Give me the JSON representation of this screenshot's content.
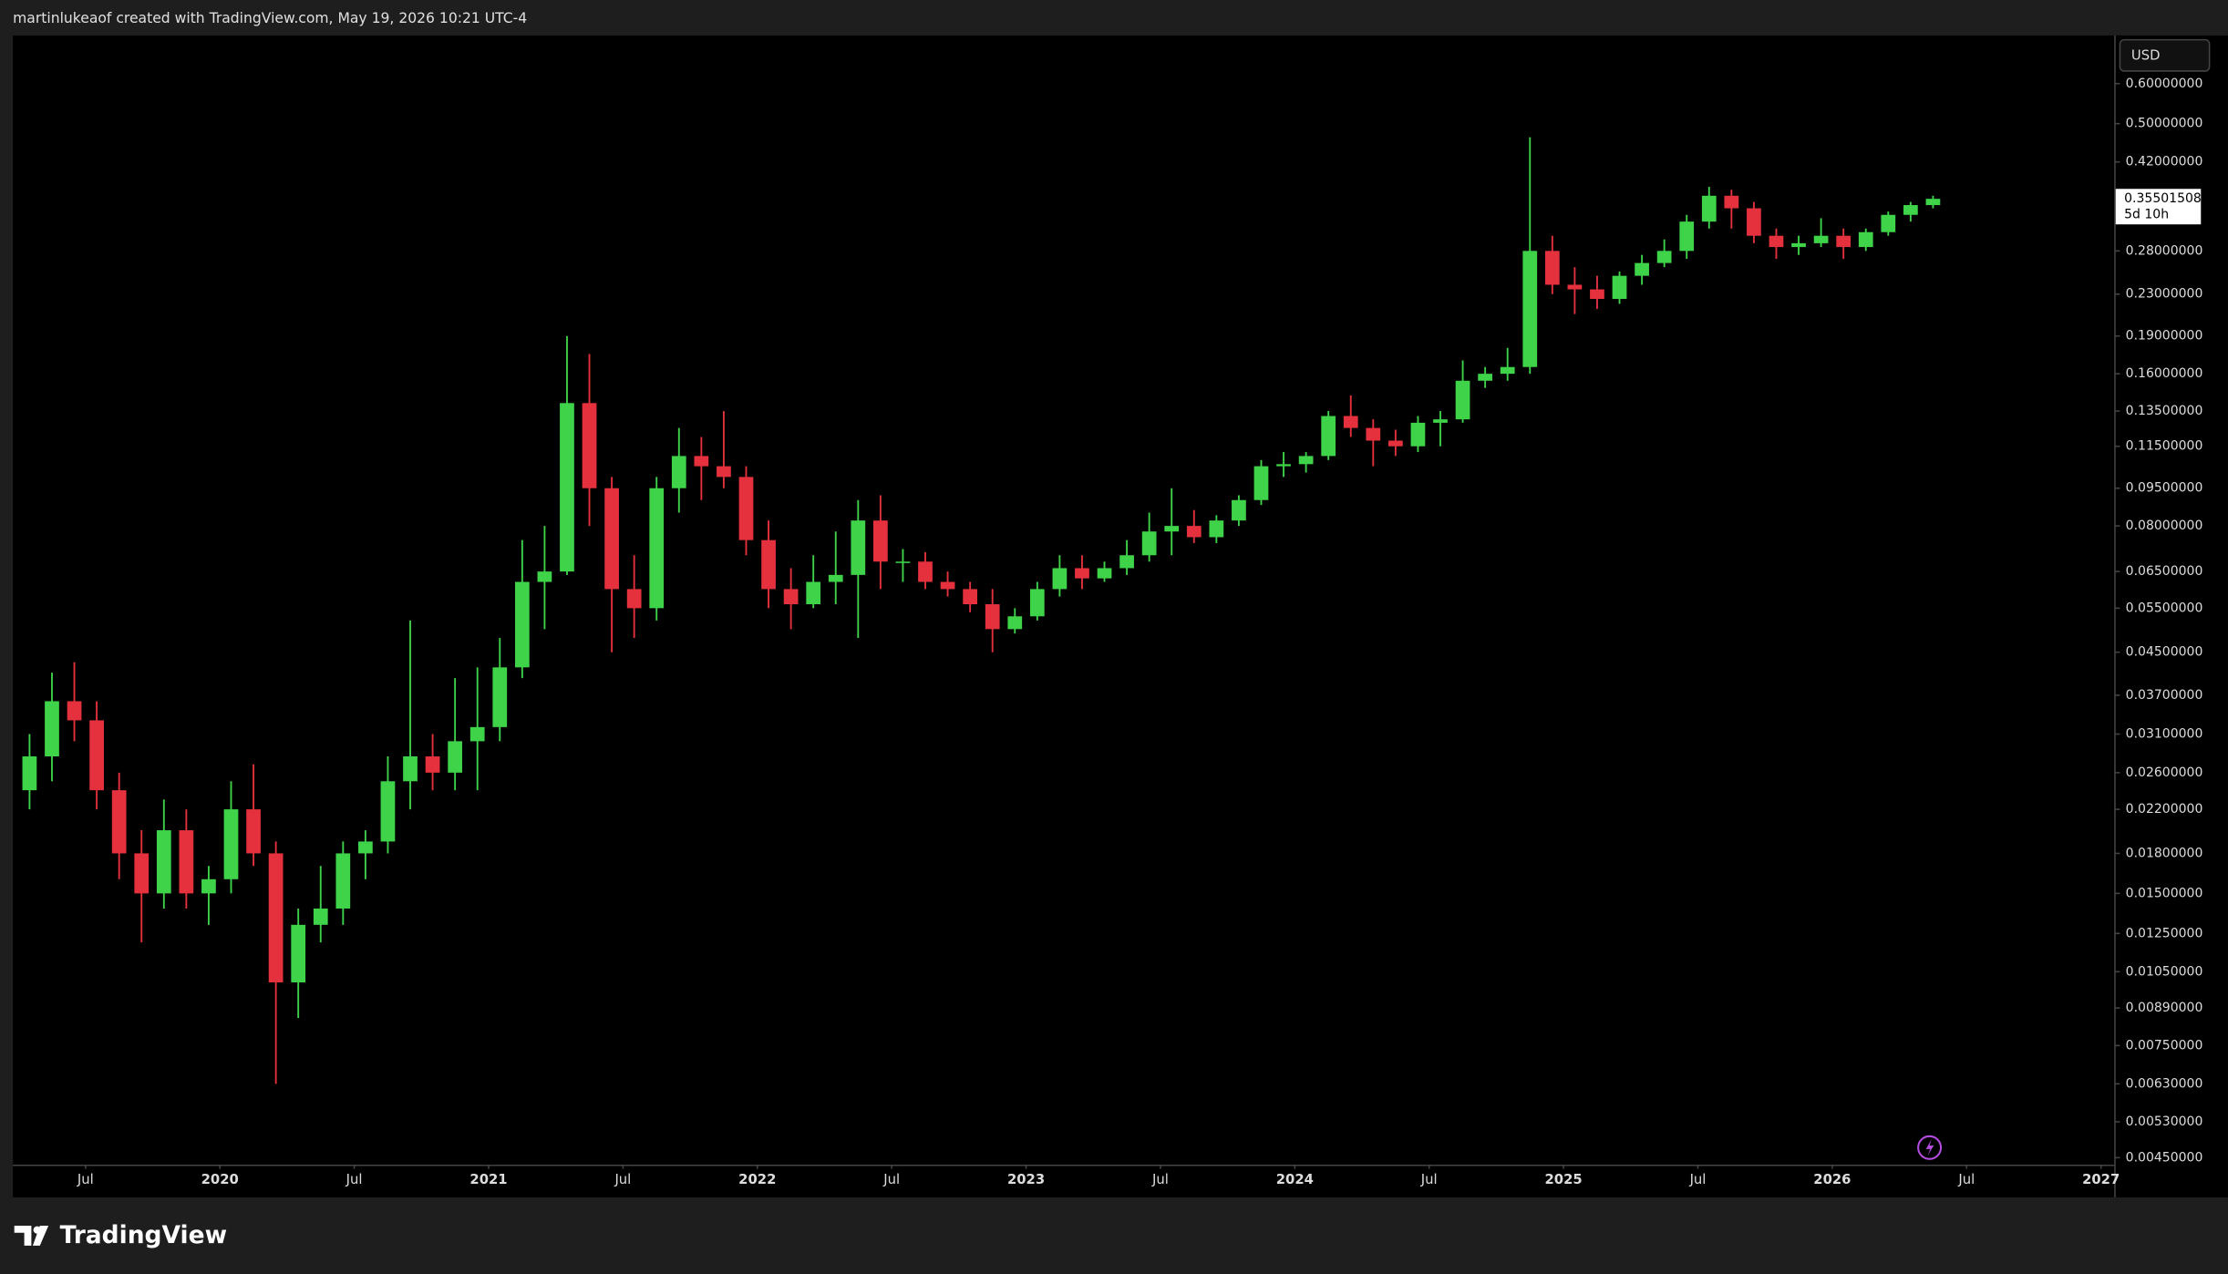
{
  "chart_data": {
    "type": "candlestick",
    "title": "martinlukeaof created with TradingView.com, May 19, 2026 10:21 UTC-4",
    "currency": "USD",
    "countdown": "5d 10h",
    "log": true,
    "up_color": "#3fd34a",
    "down_color": "#e5313d",
    "xlim": [
      "2019-03-24",
      "2027-01-19"
    ],
    "xticks": [
      {
        "value": "2019-07",
        "label": "Jul"
      },
      {
        "value": "2020-01",
        "label": "2020"
      },
      {
        "value": "2020-07",
        "label": "Jul"
      },
      {
        "value": "2021-01",
        "label": "2021"
      },
      {
        "value": "2021-07",
        "label": "Jul"
      },
      {
        "value": "2022-01",
        "label": "2022"
      },
      {
        "value": "2022-07",
        "label": "Jul"
      },
      {
        "value": "2023-01",
        "label": "2023"
      },
      {
        "value": "2023-07",
        "label": "Jul"
      },
      {
        "value": "2024-01",
        "label": "2024"
      },
      {
        "value": "2024-07",
        "label": "Jul"
      },
      {
        "value": "2025-01",
        "label": "2025"
      },
      {
        "value": "2025-07",
        "label": "Jul"
      },
      {
        "value": "2026-01",
        "label": "2026"
      },
      {
        "value": "2026-07",
        "label": "Jul"
      },
      {
        "value": "2027-01",
        "label": "2027"
      }
    ],
    "ylim": [
      0.00436,
      0.747
    ],
    "yticks": [
      {
        "value": 0.6,
        "label": "0.60000000"
      },
      {
        "value": 0.5,
        "label": "0.50000000"
      },
      {
        "value": 0.42,
        "label": "0.42000000"
      },
      {
        "value": 0.28,
        "label": "0.28000000"
      },
      {
        "value": 0.23,
        "label": "0.23000000"
      },
      {
        "value": 0.19,
        "label": "0.19000000"
      },
      {
        "value": 0.16,
        "label": "0.16000000"
      },
      {
        "value": 0.135,
        "label": "0.13500000"
      },
      {
        "value": 0.115,
        "label": "0.11500000"
      },
      {
        "value": 0.095,
        "label": "0.09500000"
      },
      {
        "value": 0.08,
        "label": "0.08000000"
      },
      {
        "value": 0.065,
        "label": "0.06500000"
      },
      {
        "value": 0.055,
        "label": "0.05500000"
      },
      {
        "value": 0.045,
        "label": "0.04500000"
      },
      {
        "value": 0.037,
        "label": "0.03700000"
      },
      {
        "value": 0.031,
        "label": "0.03100000"
      },
      {
        "value": 0.026,
        "label": "0.02600000"
      },
      {
        "value": 0.022,
        "label": "0.02200000"
      },
      {
        "value": 0.018,
        "label": "0.01800000"
      },
      {
        "value": 0.015,
        "label": "0.01500000"
      },
      {
        "value": 0.0125,
        "label": "0.01250000"
      },
      {
        "value": 0.0105,
        "label": "0.01050000"
      },
      {
        "value": 0.0089,
        "label": "0.00890000"
      },
      {
        "value": 0.0075,
        "label": "0.00750000"
      },
      {
        "value": 0.0063,
        "label": "0.00630000"
      },
      {
        "value": 0.0053,
        "label": "0.00530000"
      },
      {
        "value": 0.0045,
        "label": "0.00450000"
      }
    ],
    "x": [
      "2019-04",
      "2019-05",
      "2019-06",
      "2019-07",
      "2019-08",
      "2019-09",
      "2019-10",
      "2019-11",
      "2019-12",
      "2020-01",
      "2020-02",
      "2020-03",
      "2020-04",
      "2020-05",
      "2020-06",
      "2020-07",
      "2020-08",
      "2020-09",
      "2020-10",
      "2020-11",
      "2020-12",
      "2021-01",
      "2021-02",
      "2021-03",
      "2021-04",
      "2021-05",
      "2021-06",
      "2021-07",
      "2021-08",
      "2021-09",
      "2021-10",
      "2021-11",
      "2021-12",
      "2022-01",
      "2022-02",
      "2022-03",
      "2022-04",
      "2022-05",
      "2022-06",
      "2022-07",
      "2022-08",
      "2022-09",
      "2022-10",
      "2022-11",
      "2022-12",
      "2023-01",
      "2023-02",
      "2023-03",
      "2023-04",
      "2023-05",
      "2023-06",
      "2023-07",
      "2023-08",
      "2023-09",
      "2023-10",
      "2023-11",
      "2023-12",
      "2024-01",
      "2024-02",
      "2024-03",
      "2024-04",
      "2024-05",
      "2024-06",
      "2024-07",
      "2024-08",
      "2024-09",
      "2024-10",
      "2024-11",
      "2024-12",
      "2025-01",
      "2025-02",
      "2025-03",
      "2025-04",
      "2025-05",
      "2025-06",
      "2025-07",
      "2025-08",
      "2025-09",
      "2025-10",
      "2025-11",
      "2025-12",
      "2026-01",
      "2026-02",
      "2026-03",
      "2026-04",
      "2026-05"
    ],
    "open": [
      0.024,
      0.028,
      0.036,
      0.033,
      0.024,
      0.018,
      0.015,
      0.02,
      0.015,
      0.016,
      0.022,
      0.018,
      0.01,
      0.013,
      0.014,
      0.018,
      0.019,
      0.025,
      0.028,
      0.026,
      0.03,
      0.032,
      0.042,
      0.062,
      0.065,
      0.14,
      0.095,
      0.06,
      0.055,
      0.095,
      0.11,
      0.105,
      0.1,
      0.075,
      0.06,
      0.056,
      0.062,
      0.064,
      0.082,
      0.068,
      0.068,
      0.062,
      0.06,
      0.056,
      0.05,
      0.053,
      0.06,
      0.066,
      0.063,
      0.066,
      0.07,
      0.078,
      0.08,
      0.076,
      0.082,
      0.09,
      0.105,
      0.106,
      0.11,
      0.132,
      0.125,
      0.118,
      0.115,
      0.128,
      0.13,
      0.155,
      0.16,
      0.165,
      0.28,
      0.24,
      0.235,
      0.225,
      0.25,
      0.265,
      0.28,
      0.32,
      0.36,
      0.34,
      0.3,
      0.285,
      0.29,
      0.3,
      0.285,
      0.305,
      0.33,
      0.345
    ],
    "high": [
      0.031,
      0.041,
      0.043,
      0.036,
      0.026,
      0.02,
      0.023,
      0.022,
      0.017,
      0.025,
      0.027,
      0.019,
      0.014,
      0.017,
      0.019,
      0.02,
      0.028,
      0.052,
      0.031,
      0.04,
      0.042,
      0.048,
      0.075,
      0.08,
      0.19,
      0.175,
      0.1,
      0.07,
      0.1,
      0.125,
      0.12,
      0.135,
      0.105,
      0.082,
      0.066,
      0.07,
      0.078,
      0.09,
      0.092,
      0.072,
      0.071,
      0.065,
      0.062,
      0.06,
      0.055,
      0.062,
      0.07,
      0.07,
      0.068,
      0.075,
      0.085,
      0.095,
      0.086,
      0.084,
      0.092,
      0.108,
      0.112,
      0.112,
      0.135,
      0.145,
      0.13,
      0.124,
      0.132,
      0.135,
      0.17,
      0.165,
      0.18,
      0.47,
      0.3,
      0.26,
      0.25,
      0.255,
      0.275,
      0.295,
      0.33,
      0.375,
      0.37,
      0.35,
      0.31,
      0.3,
      0.325,
      0.31,
      0.31,
      0.335,
      0.35,
      0.36
    ],
    "low": [
      0.022,
      0.025,
      0.03,
      0.022,
      0.016,
      0.012,
      0.014,
      0.014,
      0.013,
      0.015,
      0.017,
      0.0063,
      0.0085,
      0.012,
      0.013,
      0.016,
      0.018,
      0.022,
      0.024,
      0.024,
      0.024,
      0.03,
      0.04,
      0.05,
      0.064,
      0.08,
      0.045,
      0.048,
      0.052,
      0.085,
      0.09,
      0.095,
      0.07,
      0.055,
      0.05,
      0.055,
      0.056,
      0.048,
      0.06,
      0.062,
      0.06,
      0.058,
      0.054,
      0.045,
      0.049,
      0.052,
      0.058,
      0.06,
      0.062,
      0.064,
      0.068,
      0.07,
      0.074,
      0.074,
      0.08,
      0.088,
      0.1,
      0.102,
      0.108,
      0.12,
      0.105,
      0.11,
      0.112,
      0.115,
      0.128,
      0.15,
      0.155,
      0.16,
      0.23,
      0.21,
      0.215,
      0.22,
      0.24,
      0.26,
      0.27,
      0.31,
      0.31,
      0.29,
      0.27,
      0.275,
      0.285,
      0.27,
      0.28,
      0.3,
      0.32,
      0.34
    ],
    "close": [
      0.028,
      0.036,
      0.033,
      0.024,
      0.018,
      0.015,
      0.02,
      0.015,
      0.016,
      0.022,
      0.018,
      0.01,
      0.013,
      0.014,
      0.018,
      0.019,
      0.025,
      0.028,
      0.026,
      0.03,
      0.032,
      0.042,
      0.062,
      0.065,
      0.14,
      0.095,
      0.06,
      0.055,
      0.095,
      0.11,
      0.105,
      0.1,
      0.075,
      0.06,
      0.056,
      0.062,
      0.064,
      0.082,
      0.068,
      0.068,
      0.062,
      0.06,
      0.056,
      0.05,
      0.053,
      0.06,
      0.066,
      0.063,
      0.066,
      0.07,
      0.078,
      0.08,
      0.076,
      0.082,
      0.09,
      0.105,
      0.106,
      0.11,
      0.132,
      0.125,
      0.118,
      0.115,
      0.128,
      0.13,
      0.155,
      0.16,
      0.165,
      0.28,
      0.24,
      0.235,
      0.225,
      0.25,
      0.265,
      0.28,
      0.32,
      0.36,
      0.34,
      0.3,
      0.285,
      0.29,
      0.3,
      0.285,
      0.305,
      0.33,
      0.345,
      0.35501508
    ]
  },
  "brand": "TradingView"
}
